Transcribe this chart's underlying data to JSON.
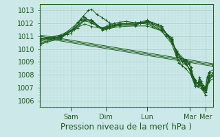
{
  "ylabel_values": [
    1006,
    1007,
    1008,
    1009,
    1010,
    1011,
    1012,
    1013
  ],
  "ylim": [
    1005.5,
    1013.5
  ],
  "bg_color": "#cce8e8",
  "grid_major_color": "#aacccc",
  "grid_minor_color": "#bbdddd",
  "line_color": "#1a5c1a",
  "x_ticks_pos": [
    0.18,
    0.38,
    0.62,
    0.865,
    0.955
  ],
  "x_tick_labels": [
    "Sam",
    "Dim",
    "Lun",
    "Mar",
    "Mer"
  ],
  "xlabel": "Pression niveau de la mer( hPa )",
  "xlabel_fontsize": 8.5,
  "tick_fontsize": 7,
  "series": [
    [
      0.0,
      1010.8,
      0.04,
      1010.85,
      0.08,
      1010.95,
      0.12,
      1011.05,
      0.16,
      1011.15,
      0.18,
      1011.2,
      0.2,
      1011.55,
      0.22,
      1011.9,
      0.24,
      1012.35,
      0.26,
      1012.5,
      0.3,
      1012.0,
      0.33,
      1011.8,
      0.36,
      1011.65,
      0.38,
      1011.75,
      0.4,
      1011.9,
      0.43,
      1012.0,
      0.46,
      1012.1,
      0.5,
      1012.15,
      0.55,
      1012.05,
      0.58,
      1012.0,
      0.62,
      1011.95,
      0.65,
      1011.75,
      0.7,
      1011.45,
      0.73,
      1011.0,
      0.76,
      1010.75,
      0.79,
      1009.4,
      0.82,
      1008.7,
      0.84,
      1009.1,
      0.86,
      1008.8,
      0.87,
      1008.5,
      0.88,
      1007.9,
      0.89,
      1007.6,
      0.895,
      1007.4,
      0.91,
      1007.1,
      0.92,
      1007.7,
      0.93,
      1007.3,
      0.94,
      1007.05,
      0.95,
      1006.9,
      0.955,
      1007.0,
      0.965,
      1007.85,
      0.975,
      1008.1,
      1.0,
      1008.2
    ],
    [
      0.0,
      1010.7,
      0.12,
      1010.95,
      0.24,
      1012.25,
      0.3,
      1012.05,
      0.36,
      1011.65,
      0.4,
      1011.8,
      0.46,
      1012.0,
      0.55,
      1011.95,
      0.62,
      1012.05,
      0.7,
      1011.5,
      0.76,
      1010.9,
      0.79,
      1009.5,
      0.84,
      1008.8,
      0.87,
      1008.4,
      0.88,
      1007.8,
      0.895,
      1007.2,
      0.92,
      1007.5,
      0.94,
      1007.0,
      0.955,
      1006.9,
      0.975,
      1007.95,
      1.0,
      1008.1
    ],
    [
      0.0,
      1010.6,
      0.12,
      1010.95,
      0.22,
      1011.65,
      0.26,
      1012.4,
      0.3,
      1012.15,
      0.36,
      1011.6,
      0.4,
      1011.75,
      0.46,
      1011.95,
      0.55,
      1011.95,
      0.62,
      1012.1,
      0.65,
      1011.95,
      0.7,
      1011.6,
      0.76,
      1010.8,
      0.79,
      1009.6,
      0.84,
      1008.9,
      0.87,
      1008.3,
      0.895,
      1007.3,
      0.92,
      1007.4,
      0.94,
      1006.95,
      0.955,
      1006.8,
      0.975,
      1007.85,
      1.0,
      1008.0
    ],
    [
      0.0,
      1010.5,
      0.12,
      1010.85,
      0.26,
      1012.3,
      0.3,
      1012.25,
      0.36,
      1011.55,
      0.4,
      1011.7,
      0.46,
      1011.9,
      0.55,
      1011.9,
      0.62,
      1012.15,
      0.7,
      1011.7,
      0.76,
      1010.7,
      0.79,
      1009.7,
      0.84,
      1009.0,
      0.87,
      1008.2,
      0.895,
      1007.4,
      0.92,
      1007.3,
      0.94,
      1006.9,
      0.955,
      1006.7,
      0.975,
      1007.75,
      1.0,
      1007.95
    ],
    [
      0.0,
      1010.4,
      0.12,
      1010.8,
      0.26,
      1012.22,
      0.3,
      1012.28,
      0.36,
      1011.5,
      0.4,
      1011.65,
      0.46,
      1011.85,
      0.55,
      1011.85,
      0.62,
      1012.2,
      0.7,
      1011.82,
      0.76,
      1010.6,
      0.79,
      1009.8,
      0.84,
      1009.1,
      0.87,
      1008.1,
      0.895,
      1007.5,
      0.92,
      1007.2,
      0.94,
      1006.85,
      0.955,
      1006.6,
      0.975,
      1007.65,
      1.0,
      1007.9
    ],
    [
      0.0,
      1010.3,
      0.04,
      1010.55,
      0.08,
      1010.85,
      0.12,
      1011.0,
      0.18,
      1011.4,
      0.22,
      1012.1,
      0.25,
      1012.55,
      0.28,
      1013.0,
      0.3,
      1013.1,
      0.33,
      1012.7,
      0.36,
      1012.45,
      0.38,
      1012.25,
      0.4,
      1012.05,
      0.43,
      1011.85,
      0.46,
      1011.95,
      0.5,
      1012.0,
      0.55,
      1012.05,
      0.58,
      1012.1,
      0.62,
      1012.25,
      0.65,
      1012.05,
      0.68,
      1011.9,
      0.7,
      1011.8,
      0.73,
      1011.15,
      0.76,
      1010.5,
      0.79,
      1009.9,
      0.82,
      1009.0,
      0.84,
      1009.2,
      0.86,
      1008.9,
      0.87,
      1008.6,
      0.88,
      1008.0,
      0.89,
      1007.7,
      0.895,
      1007.6,
      0.91,
      1007.3,
      0.92,
      1007.8,
      0.93,
      1007.5,
      0.94,
      1007.2,
      0.95,
      1007.05,
      0.955,
      1007.1,
      0.965,
      1007.8,
      0.975,
      1008.2,
      1.0,
      1008.4
    ],
    [
      0.0,
      1010.75,
      0.12,
      1011.1,
      0.26,
      1011.95,
      0.3,
      1011.75,
      0.38,
      1011.55,
      0.46,
      1011.75,
      0.55,
      1011.8,
      0.62,
      1011.8,
      0.7,
      1011.42,
      0.76,
      1010.42,
      0.8,
      1008.9,
      0.84,
      1008.5,
      0.87,
      1008.0,
      0.895,
      1007.1,
      0.93,
      1006.95,
      0.955,
      1006.42,
      0.975,
      1007.5,
      1.0,
      1007.7
    ],
    [
      0.0,
      1010.9,
      1.0,
      1008.65
    ],
    [
      0.0,
      1011.0,
      1.0,
      1008.75
    ],
    [
      0.0,
      1011.1,
      1.0,
      1008.85
    ]
  ]
}
